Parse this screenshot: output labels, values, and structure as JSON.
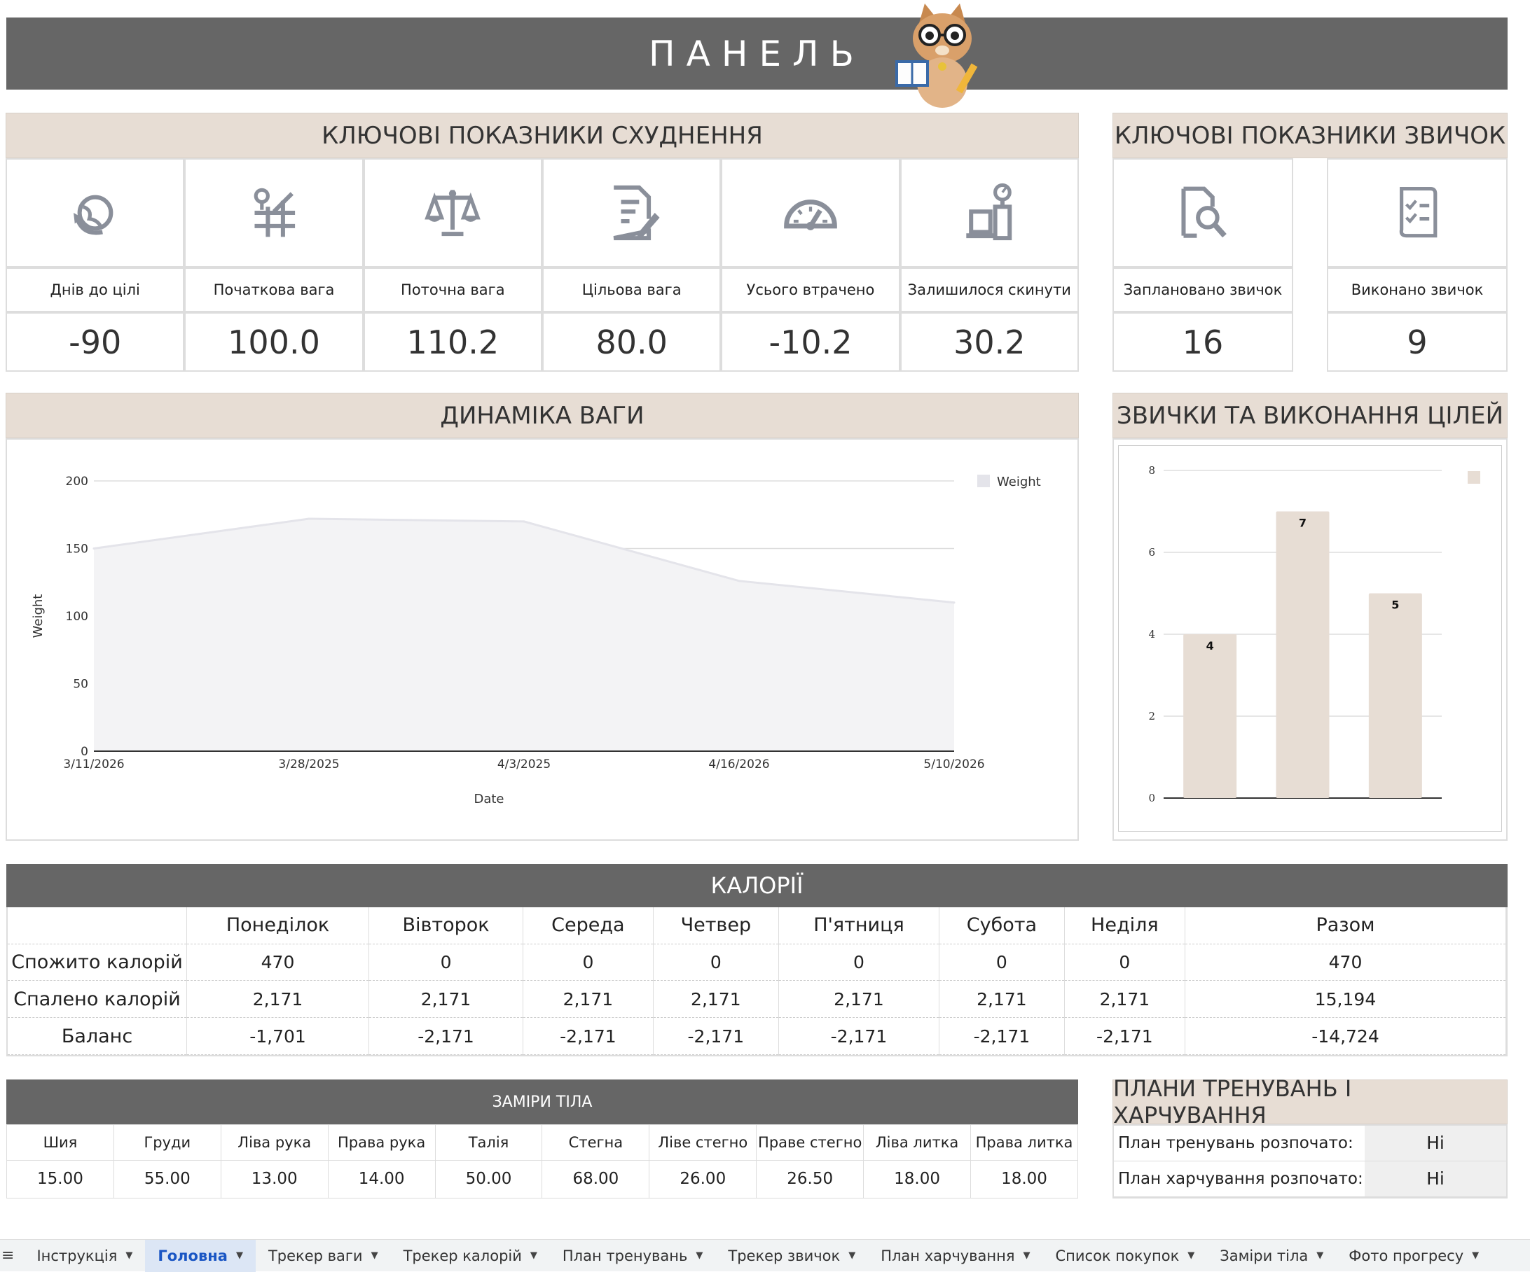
{
  "banner": {
    "title": "ПАНЕЛЬ"
  },
  "weight_kpi": {
    "title": "КЛЮЧОВІ ПОКАЗНИКИ СХУДНЕННЯ",
    "items": [
      {
        "icon": "globe-arrow-icon",
        "label": "Днів до цілі",
        "value": "-90"
      },
      {
        "icon": "map-pin-grid-icon",
        "label": "Початкова вага",
        "value": "100.0"
      },
      {
        "icon": "balance-scale-icon",
        "label": "Поточна вага",
        "value": "110.2"
      },
      {
        "icon": "document-edit-icon",
        "label": "Цільова вага",
        "value": "80.0"
      },
      {
        "icon": "speedometer-icon",
        "label": "Усього втрачено",
        "value": "-10.2"
      },
      {
        "icon": "weighing-scale-icon",
        "label": "Залишилося скинути",
        "value": "30.2"
      }
    ]
  },
  "habit_kpi": {
    "title": "КЛЮЧОВІ ПОКАЗНИКИ ЗВИЧОК",
    "items": [
      {
        "icon": "document-search-icon",
        "label": "Заплановано звичок",
        "value": "16"
      },
      {
        "icon": "checklist-icon",
        "label": "Виконано звичок",
        "value": "9"
      }
    ]
  },
  "weight_chart_header": "ДИНАМІКА ВАГИ",
  "habit_chart_header": "ЗВИЧКИ ТА ВИКОНАННЯ ЦІЛЕЙ",
  "chart_data": [
    {
      "type": "area",
      "x": [
        "3/11/2026",
        "3/28/2025",
        "4/3/2025",
        "4/16/2026",
        "5/10/2026"
      ],
      "series": [
        {
          "name": "Weight",
          "values": [
            150,
            172,
            170,
            126,
            110
          ]
        }
      ],
      "xlabel": "Date",
      "ylabel": "Weight",
      "yticks": [
        0,
        50,
        100,
        150,
        200
      ],
      "ylim": [
        0,
        200
      ],
      "legend": "top-right",
      "grid": true,
      "color": "#f3f3f5"
    },
    {
      "type": "bar",
      "categories": [
        "",
        "",
        ""
      ],
      "values": [
        4,
        7,
        5
      ],
      "data_labels": [
        "4",
        "7",
        "5"
      ],
      "yticks": [
        0,
        2,
        4,
        6,
        8
      ],
      "ylim": [
        0,
        8
      ],
      "legend": "top-right",
      "grid": true,
      "color": "#e7ddd4"
    }
  ],
  "calories": {
    "title": "КАЛОРІЇ",
    "days": [
      "Понеділок",
      "Вівторок",
      "Середа",
      "Четвер",
      "П'ятниця",
      "Субота",
      "Неділя",
      "Разом"
    ],
    "rows": [
      {
        "label": "Спожито калорій",
        "values": [
          "470",
          "0",
          "0",
          "0",
          "0",
          "0",
          "0",
          "470"
        ]
      },
      {
        "label": "Спалено калорій",
        "values": [
          "2,171",
          "2,171",
          "2,171",
          "2,171",
          "2,171",
          "2,171",
          "2,171",
          "15,194"
        ]
      },
      {
        "label": "Баланс",
        "values": [
          "-1,701",
          "-2,171",
          "-2,171",
          "-2,171",
          "-2,171",
          "-2,171",
          "-2,171",
          "-14,724"
        ]
      }
    ]
  },
  "measurements": {
    "title": "ЗАМІРИ ТІЛА",
    "headers": [
      "Шия",
      "Груди",
      "Ліва рука",
      "Права рука",
      "Талія",
      "Стегна",
      "Ліве стегно",
      "Праве стегно",
      "Ліва литка",
      "Права литка"
    ],
    "values": [
      "15.00",
      "55.00",
      "13.00",
      "14.00",
      "50.00",
      "68.00",
      "26.00",
      "26.50",
      "18.00",
      "18.00"
    ]
  },
  "plans": {
    "title": "ПЛАНИ ТРЕНУВАНЬ І ХАРЧУВАННЯ",
    "rows": [
      {
        "label": "План тренувань розпочато:",
        "value": "Ні"
      },
      {
        "label": "План харчування розпочато:",
        "value": "Ні"
      }
    ]
  },
  "sheet_tabs": [
    {
      "label": "Інструкція",
      "active": false
    },
    {
      "label": "Головна",
      "active": true
    },
    {
      "label": "Трекер ваги",
      "active": false
    },
    {
      "label": "Трекер калорій",
      "active": false
    },
    {
      "label": "План тренувань",
      "active": false
    },
    {
      "label": "Трекер звичок",
      "active": false
    },
    {
      "label": "План харчування",
      "active": false
    },
    {
      "label": "Список покупок",
      "active": false
    },
    {
      "label": "Заміри тіла",
      "active": false
    },
    {
      "label": "Фото прогресу",
      "active": false
    }
  ]
}
